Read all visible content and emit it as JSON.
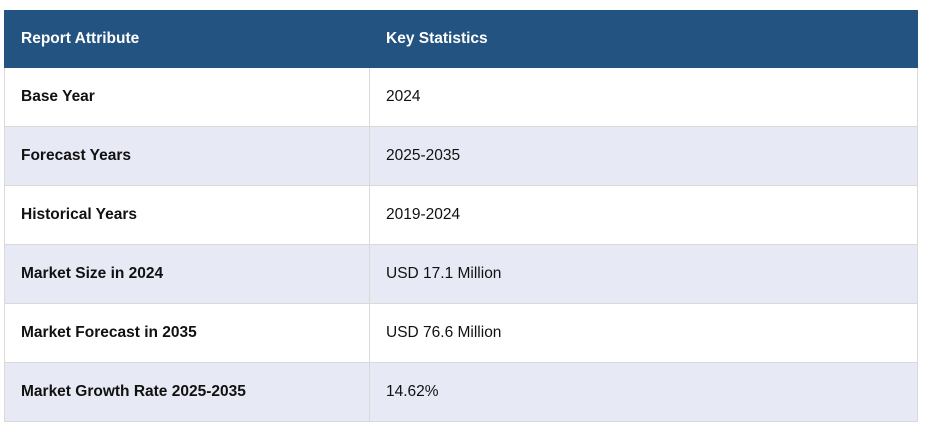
{
  "table": {
    "header": [
      "Report Attribute",
      "Key Statistics"
    ],
    "rows": [
      [
        "Base Year",
        "2024"
      ],
      [
        "Forecast Years",
        "2025-2035"
      ],
      [
        "Historical Years",
        "2019-2024"
      ],
      [
        "Market Size in 2024",
        "USD 17.1 Million"
      ],
      [
        "Market Forecast in 2035",
        "USD 76.6 Million"
      ],
      [
        "Market Growth Rate 2025-2035",
        "14.62%"
      ]
    ]
  }
}
